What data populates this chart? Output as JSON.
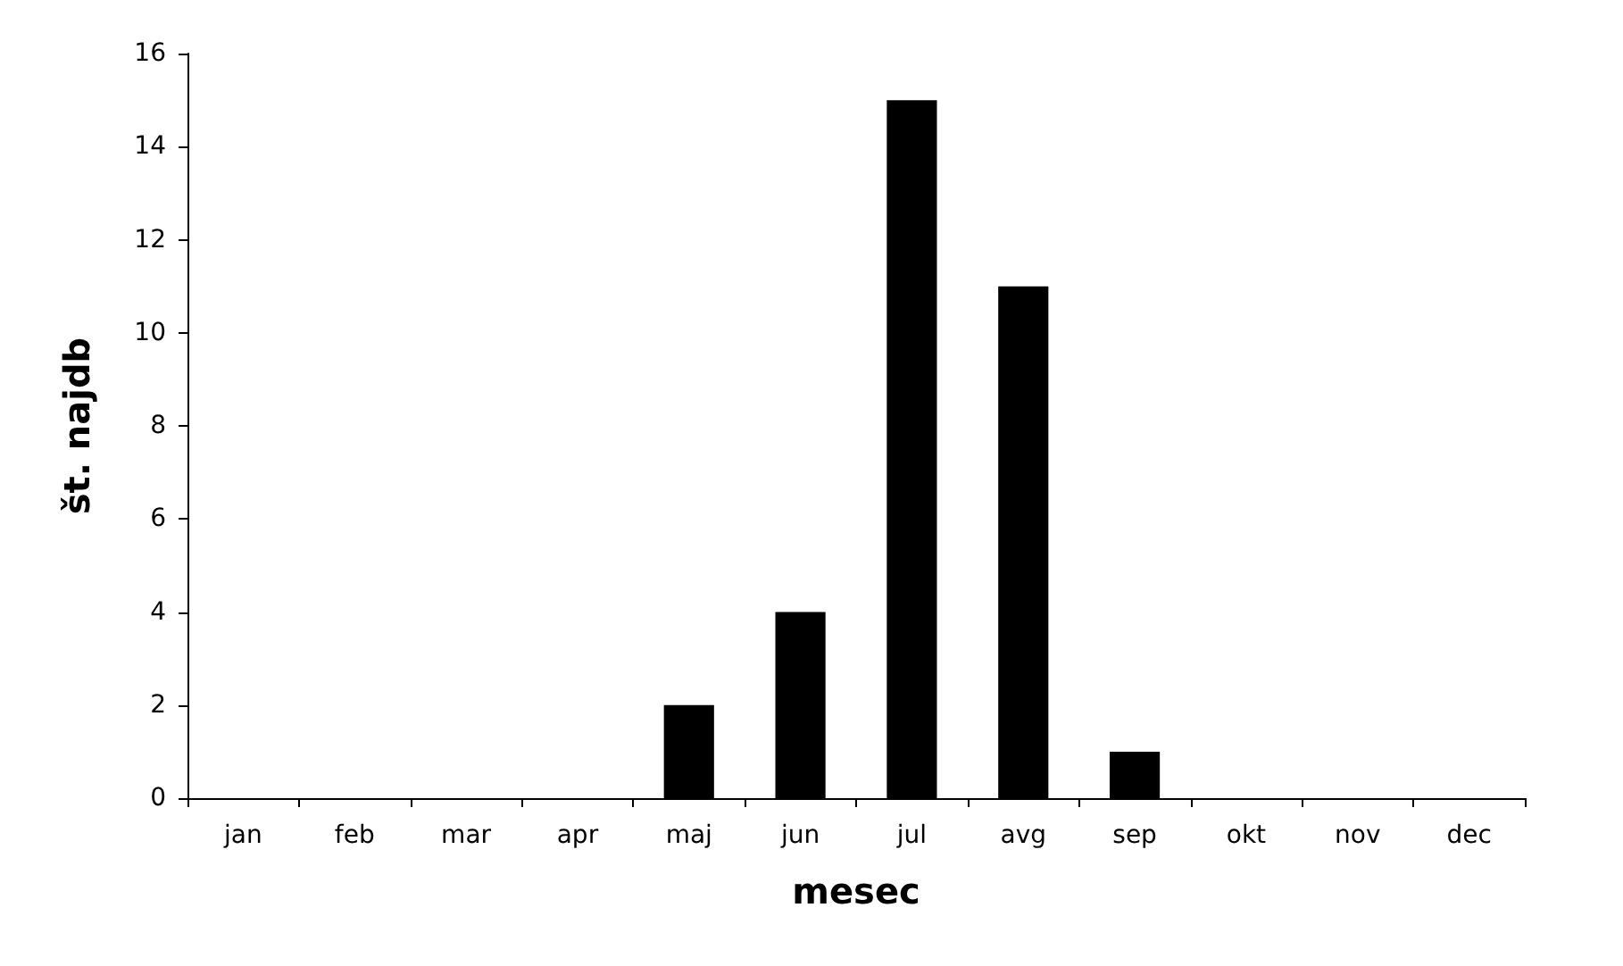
{
  "chart_data": {
    "type": "bar",
    "xlabel": "mesec",
    "ylabel": "št. najdb",
    "categories": [
      "jan",
      "feb",
      "mar",
      "apr",
      "maj",
      "jun",
      "jul",
      "avg",
      "sep",
      "okt",
      "nov",
      "dec"
    ],
    "values": [
      0,
      0,
      0,
      0,
      2,
      4,
      15,
      11,
      1,
      0,
      0,
      0
    ],
    "color": "#000000",
    "ylim": [
      0,
      16
    ],
    "yticks": [
      0,
      2,
      4,
      6,
      8,
      10,
      12,
      14,
      16
    ],
    "grid": false
  }
}
